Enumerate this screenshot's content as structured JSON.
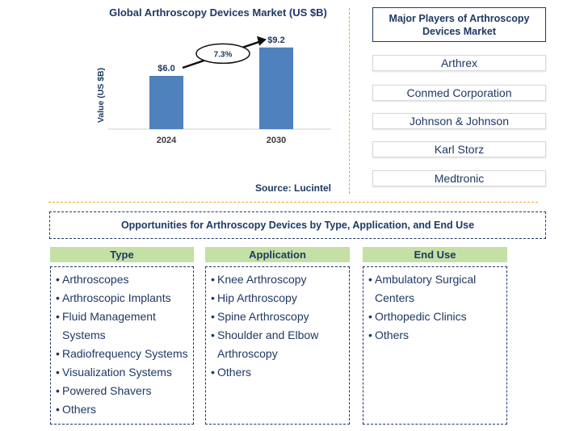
{
  "chart_data": {
    "type": "bar",
    "title": "Global Arthroscopy Devices Market (US $B)",
    "ylabel": "Value (US $B)",
    "xlabel": "",
    "categories": [
      "2024",
      "2030"
    ],
    "values": [
      6.0,
      9.2
    ],
    "value_labels": [
      "$6.0",
      "$9.2"
    ],
    "ylim": [
      0,
      10
    ],
    "grid": false,
    "growth_annotation": "7.3%",
    "source": "Source: Lucintel",
    "bar_color": "#4f81bd"
  },
  "players": {
    "title": "Major Players of Arthroscopy Devices Market",
    "items": [
      "Arthrex",
      "Conmed Corporation",
      "Johnson & Johnson",
      "Karl Storz",
      "Medtronic"
    ]
  },
  "opportunities": {
    "title": "Opportunities for Arthroscopy Devices by Type, Application, and End Use",
    "columns": [
      {
        "header": "Type",
        "items": [
          "Arthroscopes",
          "Arthroscopic Implants",
          "Fluid Management Systems",
          "Radiofrequency Systems",
          "Visualization Systems",
          "Powered Shavers",
          "Others"
        ]
      },
      {
        "header": "Application",
        "items": [
          "Knee Arthroscopy",
          "Hip Arthroscopy",
          "Spine Arthroscopy",
          "Shoulder and Elbow Arthroscopy",
          "Others"
        ]
      },
      {
        "header": "End Use",
        "items": [
          "Ambulatory Surgical Centers",
          "Orthopedic Clinics",
          "Others"
        ]
      }
    ]
  },
  "colors": {
    "accent": "#1f3864",
    "header_fill": "#c5e0a5",
    "divider": "#e6a92c"
  }
}
